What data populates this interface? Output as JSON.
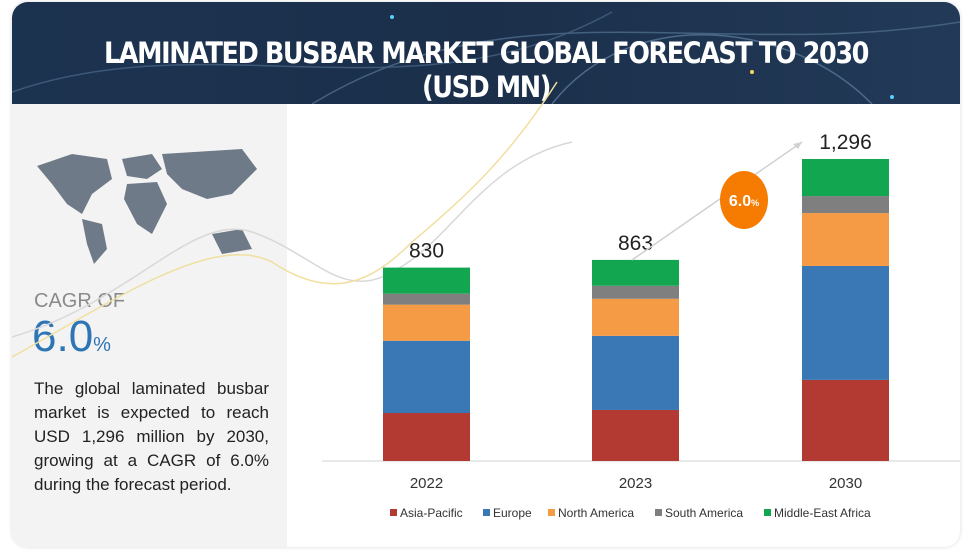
{
  "header": {
    "title": "LAMINATED BUSBAR MARKET GLOBAL FORECAST TO 2030 (USD MN)"
  },
  "left_panel": {
    "cagr_label": "CAGR OF",
    "cagr_value": "6.0",
    "cagr_unit": "%",
    "description": "The global laminated busbar market is expected to reach USD 1,296 million by 2030, growing at a CAGR of 6.0% during the forecast period."
  },
  "chart_data": {
    "type": "bar",
    "stacked": true,
    "title": "LAMINATED BUSBAR MARKET GLOBAL FORECAST TO 2030 (USD MN)",
    "categories": [
      "2022",
      "2023",
      "2030"
    ],
    "totals": [
      "830",
      "863",
      "1,296"
    ],
    "total_values": [
      830,
      863,
      1296
    ],
    "series": [
      {
        "name": "Asia-Pacific",
        "color": "#b33a32",
        "values": [
          206,
          219,
          348
        ]
      },
      {
        "name": "Europe",
        "color": "#3a78b5",
        "values": [
          310,
          318,
          489
        ]
      },
      {
        "name": "North America",
        "color": "#f59a45",
        "values": [
          155,
          159,
          227
        ]
      },
      {
        "name": "South America",
        "color": "#7f7f7f",
        "values": [
          47,
          56,
          73
        ]
      },
      {
        "name": "Middle-East Africa",
        "color": "#12a650",
        "values": [
          112,
          111,
          159
        ]
      }
    ],
    "cagr_badge": {
      "value": "6.0",
      "unit": "%",
      "color": "#f57c00"
    },
    "legend_position": "bottom",
    "ylim": [
      0,
      1296
    ],
    "grid": false
  }
}
